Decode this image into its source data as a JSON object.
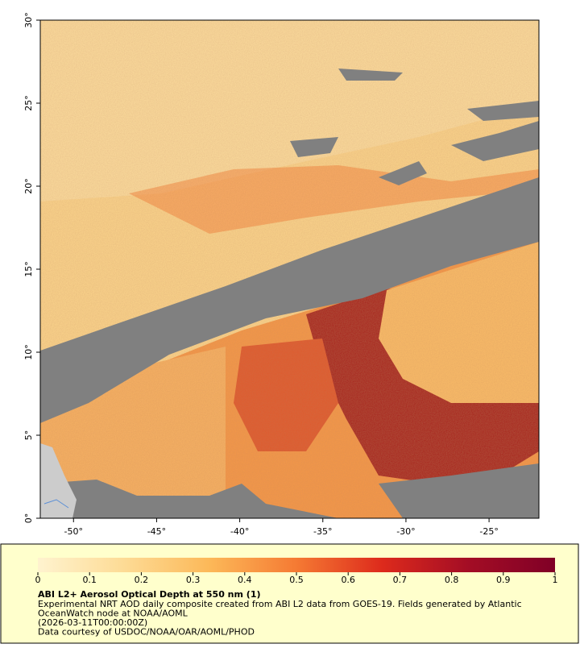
{
  "map": {
    "xlim": [
      -52,
      -22
    ],
    "ylim": [
      0,
      30
    ],
    "xticks": [
      {
        "value": -50,
        "label": "-50°"
      },
      {
        "value": -45,
        "label": "-45°"
      },
      {
        "value": -40,
        "label": "-40°"
      },
      {
        "value": -35,
        "label": "-35°"
      },
      {
        "value": -30,
        "label": "-30°"
      },
      {
        "value": -25,
        "label": "-25°"
      }
    ],
    "yticks": [
      {
        "value": 0,
        "label": "0°"
      },
      {
        "value": 5,
        "label": "5°"
      },
      {
        "value": 10,
        "label": "10°"
      },
      {
        "value": 15,
        "label": "15°"
      },
      {
        "value": 20,
        "label": "20°"
      },
      {
        "value": 25,
        "label": "25°"
      },
      {
        "value": 30,
        "label": "30°"
      }
    ]
  },
  "colorbar": {
    "clim": [
      0,
      1
    ],
    "ticks": [
      0,
      0.1,
      0.2,
      0.3,
      0.4,
      0.5,
      0.6,
      0.7,
      0.8,
      0.9,
      1
    ],
    "colors": [
      "#fff3cf",
      "#fddb95",
      "#fcb858",
      "#f57a33",
      "#dd2a1c",
      "#a30d25",
      "#800026"
    ]
  },
  "caption": {
    "title": "ABI L2+ Aerosol Optical Depth at 550 nm (1)",
    "lines": [
      "Experimental NRT AOD daily composite created from ABI L2 data from GOES-19. Fields generated by Atlantic",
      "OceanWatch node at NOAA/AOML",
      "(2026-03-11T00:00:00Z)",
      "Data courtesy of USDOC/NOAA/OAR/AOML/PHOD"
    ]
  }
}
